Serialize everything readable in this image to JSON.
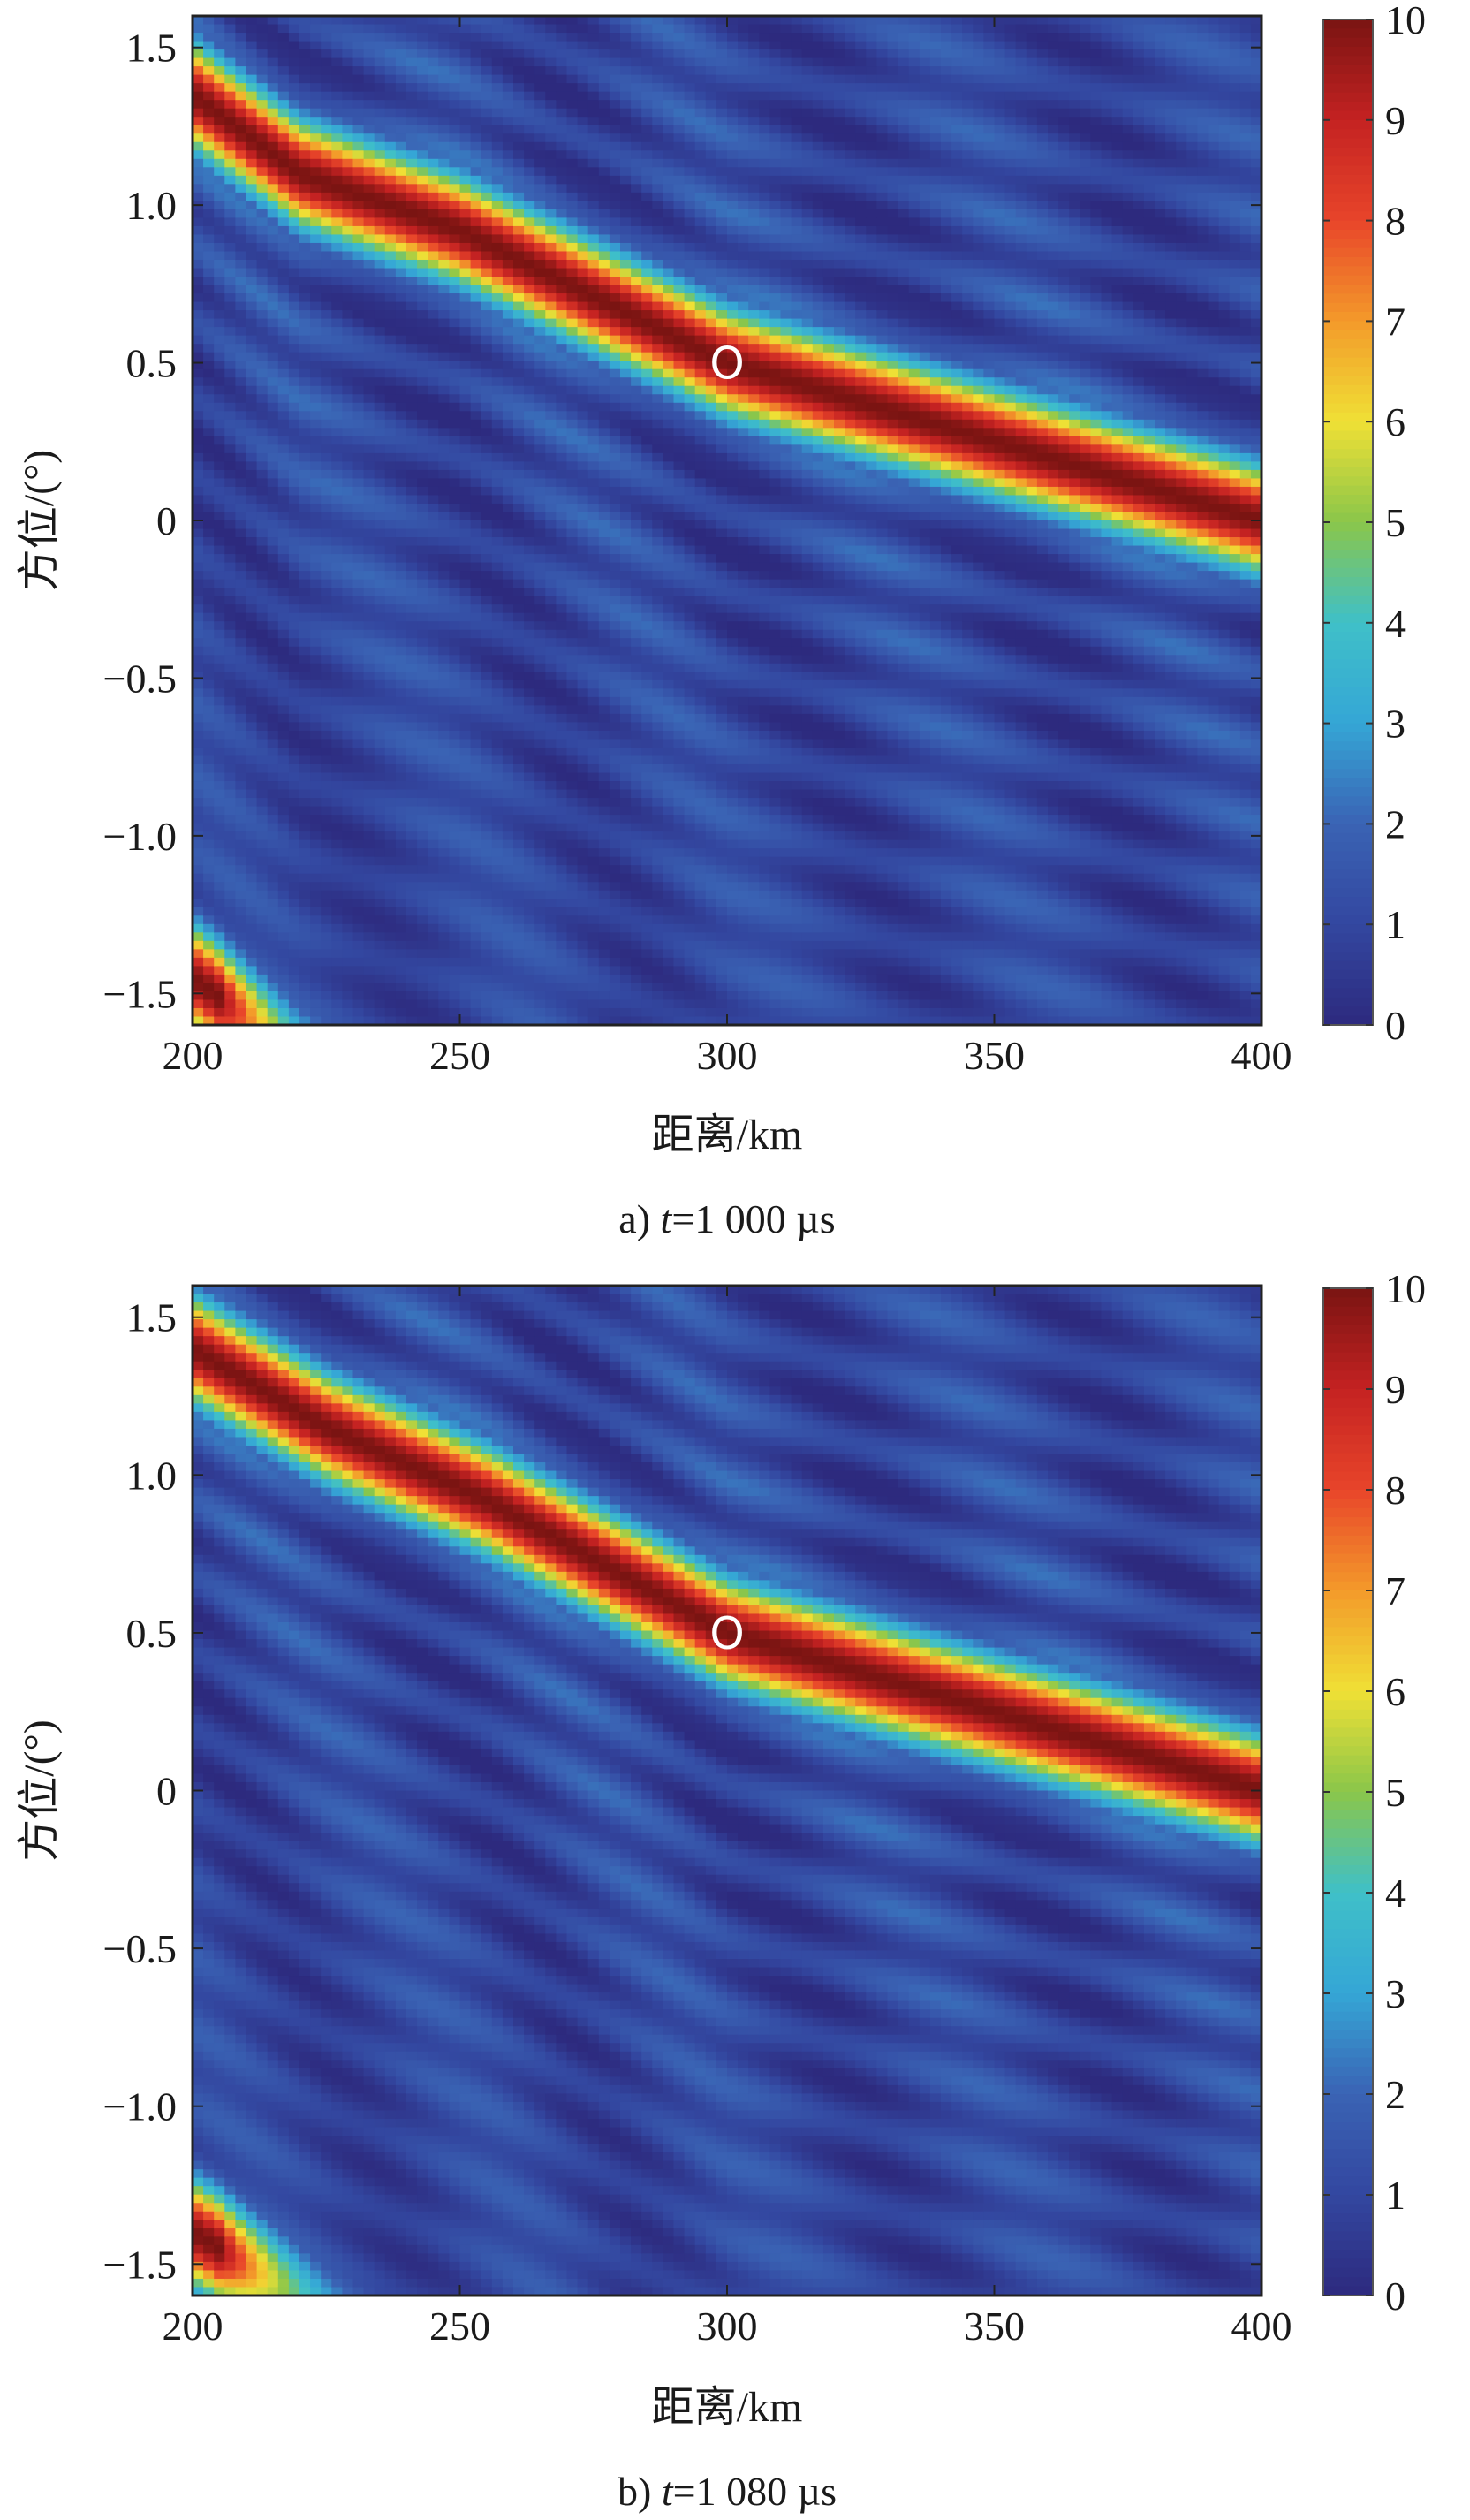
{
  "colormap": [
    "#2d2a7e",
    "#3347a0",
    "#3a63b4",
    "#35a6d6",
    "#3fc0c8",
    "#8ac64a",
    "#f0e035",
    "#f39a2a",
    "#e8452a",
    "#c42222",
    "#7a1412"
  ],
  "marker_color": "#ffffff",
  "chart_data": [
    {
      "type": "heatmap",
      "caption": {
        "prefix": "a) ",
        "var": "t",
        "rest": "=1 000 µs"
      },
      "xlabel": "距离/km",
      "ylabel": "方位/(°)",
      "xlim": [
        200,
        400
      ],
      "ylim": [
        -1.6,
        1.6
      ],
      "xticks": [
        200,
        250,
        300,
        350,
        400
      ],
      "xtick_labels": [
        "200",
        "250",
        "300",
        "350",
        "400"
      ],
      "yticks": [
        1.5,
        1.0,
        0.5,
        0,
        -0.5,
        -1.0,
        -1.5
      ],
      "ytick_labels": [
        "1.5",
        "1.0",
        "0.5",
        "0",
        "−0.5",
        "−1.0",
        "−1.5"
      ],
      "colorbar": {
        "min": 0,
        "max": 10,
        "ticks": [
          0,
          1,
          2,
          3,
          4,
          5,
          6,
          7,
          8,
          9,
          10
        ],
        "tick_labels": [
          "0",
          "1",
          "2",
          "3",
          "4",
          "5",
          "6",
          "7",
          "8",
          "9",
          "10"
        ]
      },
      "target": {
        "x": 300,
        "y": 0.5,
        "label": "O"
      },
      "peak_ridge": [
        [
          200,
          1.35
        ],
        [
          220,
          1.1
        ],
        [
          250,
          0.92
        ],
        [
          300,
          0.5
        ],
        [
          350,
          0.25
        ],
        [
          400,
          0.0
        ]
      ],
      "ridge_width_deg": 0.12
    },
    {
      "type": "heatmap",
      "caption": {
        "prefix": "b) ",
        "var": "t",
        "rest": "=1 080 µs"
      },
      "xlabel": "距离/km",
      "ylabel": "方位/(°)",
      "xlim": [
        200,
        400
      ],
      "ylim": [
        -1.6,
        1.6
      ],
      "xticks": [
        200,
        250,
        300,
        350,
        400
      ],
      "xtick_labels": [
        "200",
        "250",
        "300",
        "350",
        "400"
      ],
      "yticks": [
        1.5,
        1.0,
        0.5,
        0,
        -0.5,
        -1.0,
        -1.5
      ],
      "ytick_labels": [
        "1.5",
        "1.0",
        "0.5",
        "0",
        "−0.5",
        "−1.0",
        "−1.5"
      ],
      "colorbar": {
        "min": 0,
        "max": 10,
        "ticks": [
          0,
          1,
          2,
          3,
          4,
          5,
          6,
          7,
          8,
          9,
          10
        ],
        "tick_labels": [
          "0",
          "1",
          "2",
          "3",
          "4",
          "5",
          "6",
          "7",
          "8",
          "9",
          "10"
        ]
      },
      "target": {
        "x": 300,
        "y": 0.5,
        "label": "O"
      },
      "peak_ridge": [
        [
          200,
          1.4
        ],
        [
          225,
          1.15
        ],
        [
          255,
          0.92
        ],
        [
          300,
          0.5
        ],
        [
          350,
          0.25
        ],
        [
          400,
          0.0
        ]
      ],
      "ridge_width_deg": 0.12
    }
  ]
}
